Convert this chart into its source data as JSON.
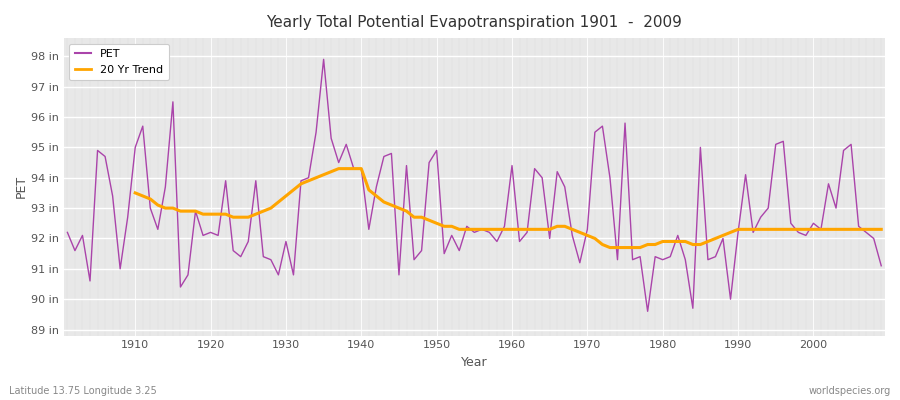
{
  "title": "Yearly Total Potential Evapotranspiration 1901  -  2009",
  "xlabel": "Year",
  "ylabel": "PET",
  "footnote_left": "Latitude 13.75 Longitude 3.25",
  "footnote_right": "worldspecies.org",
  "pet_color": "#aa44aa",
  "trend_color": "#FFA500",
  "background_color": "#e8e8e8",
  "fig_background_color": "#ffffff",
  "grid_color": "#ffffff",
  "ylim": [
    88.8,
    98.6
  ],
  "yticks": [
    89,
    90,
    91,
    92,
    93,
    94,
    95,
    96,
    97,
    98
  ],
  "years": [
    1901,
    1902,
    1903,
    1904,
    1905,
    1906,
    1907,
    1908,
    1909,
    1910,
    1911,
    1912,
    1913,
    1914,
    1915,
    1916,
    1917,
    1918,
    1919,
    1920,
    1921,
    1922,
    1923,
    1924,
    1925,
    1926,
    1927,
    1928,
    1929,
    1930,
    1931,
    1932,
    1933,
    1934,
    1935,
    1936,
    1937,
    1938,
    1939,
    1940,
    1941,
    1942,
    1943,
    1944,
    1945,
    1946,
    1947,
    1948,
    1949,
    1950,
    1951,
    1952,
    1953,
    1954,
    1955,
    1956,
    1957,
    1958,
    1959,
    1960,
    1961,
    1962,
    1963,
    1964,
    1965,
    1966,
    1967,
    1968,
    1969,
    1970,
    1971,
    1972,
    1973,
    1974,
    1975,
    1976,
    1977,
    1978,
    1979,
    1980,
    1981,
    1982,
    1983,
    1984,
    1985,
    1986,
    1987,
    1988,
    1989,
    1990,
    1991,
    1992,
    1993,
    1994,
    1995,
    1996,
    1997,
    1998,
    1999,
    2000,
    2001,
    2002,
    2003,
    2004,
    2005,
    2006,
    2007,
    2008,
    2009
  ],
  "pet_values": [
    92.2,
    91.6,
    92.1,
    90.6,
    94.9,
    94.7,
    93.4,
    91.0,
    92.7,
    95.0,
    95.7,
    93.0,
    92.3,
    93.7,
    96.5,
    90.4,
    90.8,
    92.9,
    92.1,
    92.2,
    92.1,
    93.9,
    91.6,
    91.4,
    91.9,
    93.9,
    91.4,
    91.3,
    90.8,
    91.9,
    90.8,
    93.9,
    94.0,
    95.5,
    97.9,
    95.3,
    94.5,
    95.1,
    94.3,
    94.3,
    92.3,
    93.7,
    94.7,
    94.8,
    90.8,
    94.4,
    91.3,
    91.6,
    94.5,
    94.9,
    91.5,
    92.1,
    91.6,
    92.4,
    92.2,
    92.3,
    92.2,
    91.9,
    92.4,
    94.4,
    91.9,
    92.2,
    94.3,
    94.0,
    92.0,
    94.2,
    93.7,
    92.1,
    91.2,
    92.3,
    95.5,
    95.7,
    94.0,
    91.3,
    95.8,
    91.3,
    91.4,
    89.6,
    91.4,
    91.3,
    91.4,
    92.1,
    91.3,
    89.7,
    95.0,
    91.3,
    91.4,
    92.0,
    90.0,
    92.2,
    94.1,
    92.2,
    92.7,
    93.0,
    95.1,
    95.2,
    92.5,
    92.2,
    92.1,
    92.5,
    92.3,
    93.8,
    93.0,
    94.9,
    95.1,
    92.4,
    92.2,
    92.0,
    91.1
  ],
  "trend_values": [
    null,
    null,
    null,
    null,
    null,
    null,
    null,
    null,
    null,
    93.5,
    93.4,
    93.3,
    93.1,
    93.0,
    93.0,
    92.9,
    92.9,
    92.9,
    92.8,
    92.8,
    92.8,
    92.8,
    92.7,
    92.7,
    92.7,
    92.8,
    92.9,
    93.0,
    93.2,
    93.4,
    93.6,
    93.8,
    93.9,
    94.0,
    94.1,
    94.2,
    94.3,
    94.3,
    94.3,
    94.3,
    93.6,
    93.4,
    93.2,
    93.1,
    93.0,
    92.9,
    92.7,
    92.7,
    92.6,
    92.5,
    92.4,
    92.4,
    92.3,
    92.3,
    92.3,
    92.3,
    92.3,
    92.3,
    92.3,
    92.3,
    92.3,
    92.3,
    92.3,
    92.3,
    92.3,
    92.4,
    92.4,
    92.3,
    92.2,
    92.1,
    92.0,
    91.8,
    91.7,
    91.7,
    91.7,
    91.7,
    91.7,
    91.8,
    91.8,
    91.9,
    91.9,
    91.9,
    91.9,
    91.8,
    91.8,
    91.9,
    92.0,
    92.1,
    92.2,
    92.3,
    92.3,
    92.3,
    92.3,
    92.3,
    92.3,
    92.3,
    92.3,
    92.3,
    92.3,
    92.3,
    92.3,
    92.3,
    92.3,
    92.3,
    92.3,
    92.3,
    92.3,
    92.3,
    92.3
  ]
}
